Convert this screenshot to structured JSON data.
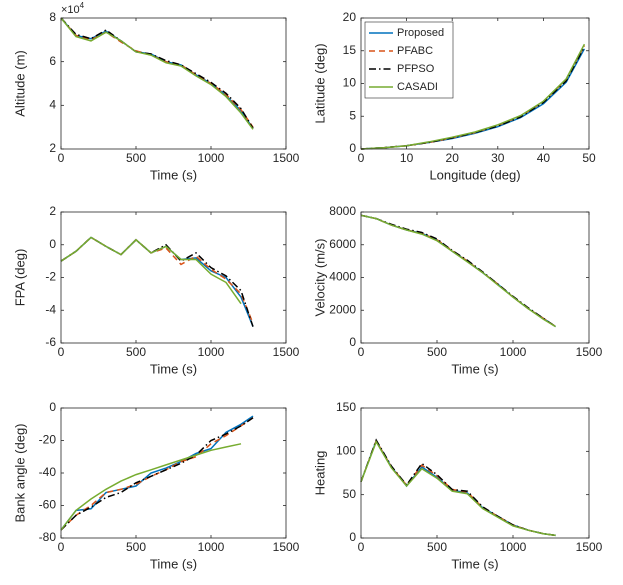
{
  "chart_data": [
    {
      "type": "line",
      "xlabel": "Time (s)",
      "ylabel": "Altitude (m)",
      "y_exponent_base": "×10",
      "y_exponent": "4",
      "x": [
        0,
        100,
        200,
        300,
        400,
        500,
        600,
        700,
        800,
        900,
        1000,
        1100,
        1200,
        1280
      ],
      "xlim": [
        0,
        1500
      ],
      "xticks": [
        0,
        500,
        1000,
        1500
      ],
      "ylim": [
        2,
        8
      ],
      "yticks": [
        2,
        4,
        6,
        8
      ],
      "series": [
        {
          "color": "#0072bd",
          "style": "solid",
          "values": [
            8.0,
            7.2,
            7.05,
            7.4,
            6.95,
            6.45,
            6.35,
            6.0,
            5.85,
            5.4,
            5.0,
            4.45,
            3.75,
            2.95
          ]
        },
        {
          "color": "#d95319",
          "style": "dashed",
          "values": [
            8.0,
            7.2,
            7.0,
            7.35,
            6.9,
            6.5,
            6.3,
            6.0,
            5.85,
            5.4,
            5.0,
            4.5,
            3.8,
            3.0
          ]
        },
        {
          "color": "#000000",
          "style": "dashdot",
          "values": [
            8.0,
            7.25,
            7.05,
            7.45,
            6.95,
            6.45,
            6.35,
            6.05,
            5.85,
            5.45,
            5.05,
            4.55,
            3.85,
            2.95
          ]
        },
        {
          "color": "#77ac30",
          "style": "solid",
          "values": [
            8.0,
            7.15,
            6.95,
            7.35,
            6.95,
            6.45,
            6.3,
            5.95,
            5.8,
            5.35,
            4.95,
            4.4,
            3.65,
            2.9
          ]
        }
      ]
    },
    {
      "type": "line",
      "xlabel": "Longitude (deg)",
      "ylabel": "Latitude (deg)",
      "legend": "upper-left",
      "x": [
        0,
        5,
        10,
        15,
        20,
        25,
        30,
        35,
        40,
        45,
        49
      ],
      "xlim": [
        0,
        50
      ],
      "xticks": [
        0,
        10,
        20,
        30,
        40,
        50
      ],
      "ylim": [
        0,
        20
      ],
      "yticks": [
        0,
        5,
        10,
        15,
        20
      ],
      "series": [
        {
          "name": "Proposed",
          "color": "#0072bd",
          "style": "solid",
          "values": [
            0,
            0.2,
            0.5,
            1.0,
            1.6,
            2.4,
            3.4,
            4.8,
            6.9,
            10.2,
            15.3
          ]
        },
        {
          "name": "PFABC",
          "color": "#d95319",
          "style": "dashed",
          "values": [
            0,
            0.2,
            0.5,
            1.0,
            1.7,
            2.5,
            3.6,
            5.0,
            7.2,
            10.6,
            15.8
          ]
        },
        {
          "name": "PFPSO",
          "color": "#000000",
          "style": "dashdot",
          "values": [
            0,
            0.2,
            0.5,
            1.0,
            1.7,
            2.5,
            3.5,
            4.9,
            7.1,
            10.4,
            15.6
          ]
        },
        {
          "name": "CASADI",
          "color": "#77ac30",
          "style": "solid",
          "values": [
            0,
            0.2,
            0.5,
            1.1,
            1.8,
            2.6,
            3.7,
            5.1,
            7.3,
            10.7,
            16.0
          ]
        }
      ]
    },
    {
      "type": "line",
      "xlabel": "Time (s)",
      "ylabel": "FPA (deg)",
      "x": [
        0,
        100,
        200,
        300,
        400,
        500,
        600,
        700,
        800,
        900,
        1000,
        1100,
        1200,
        1280
      ],
      "xlim": [
        0,
        1500
      ],
      "xticks": [
        0,
        500,
        1000,
        1500
      ],
      "ylim": [
        -6,
        2
      ],
      "yticks": [
        -6,
        -4,
        -2,
        0,
        2
      ],
      "series": [
        {
          "color": "#0072bd",
          "style": "solid",
          "values": [
            -1.0,
            -0.4,
            0.45,
            -0.1,
            -0.6,
            0.3,
            -0.5,
            -0.1,
            -0.9,
            -0.8,
            -1.6,
            -2.0,
            -3.2,
            -5.0
          ]
        },
        {
          "color": "#d95319",
          "style": "dashed",
          "values": [
            -1.0,
            -0.4,
            0.45,
            -0.1,
            -0.6,
            0.3,
            -0.5,
            -0.2,
            -1.2,
            -0.7,
            -1.5,
            -2.1,
            -3.0,
            -4.8
          ]
        },
        {
          "color": "#000000",
          "style": "dashdot",
          "values": [
            -1.0,
            -0.4,
            0.45,
            -0.1,
            -0.6,
            0.3,
            -0.5,
            0.0,
            -1.0,
            -0.5,
            -1.4,
            -1.9,
            -2.8,
            -5.0
          ]
        },
        {
          "color": "#77ac30",
          "style": "solid",
          "values": [
            -1.0,
            -0.4,
            0.45,
            -0.1,
            -0.6,
            0.3,
            -0.5,
            -0.1,
            -0.9,
            -0.9,
            -1.8,
            -2.3,
            -3.6,
            null
          ]
        }
      ]
    },
    {
      "type": "line",
      "xlabel": "Time (s)",
      "ylabel": "Velocity (m/s)",
      "x": [
        0,
        100,
        200,
        300,
        400,
        500,
        600,
        700,
        800,
        900,
        1000,
        1100,
        1200,
        1280
      ],
      "xlim": [
        0,
        1500
      ],
      "xticks": [
        0,
        500,
        1000,
        1500
      ],
      "ylim": [
        0,
        8000
      ],
      "yticks": [
        0,
        2000,
        4000,
        6000,
        8000
      ],
      "series": [
        {
          "color": "#0072bd",
          "style": "solid",
          "values": [
            7800,
            7600,
            7200,
            6900,
            6700,
            6300,
            5600,
            5000,
            4300,
            3600,
            2800,
            2100,
            1500,
            1000
          ]
        },
        {
          "color": "#d95319",
          "style": "dashed",
          "values": [
            7800,
            7600,
            7200,
            6900,
            6700,
            6300,
            5650,
            5000,
            4300,
            3600,
            2800,
            2100,
            1500,
            1000
          ]
        },
        {
          "color": "#000000",
          "style": "dashdot",
          "values": [
            7800,
            7600,
            7250,
            6950,
            6750,
            6350,
            5650,
            5050,
            4350,
            3600,
            2850,
            2150,
            1500,
            1000
          ]
        },
        {
          "color": "#77ac30",
          "style": "solid",
          "values": [
            7800,
            7600,
            7200,
            6900,
            6650,
            6250,
            5600,
            4950,
            4300,
            3550,
            2800,
            2100,
            1450,
            1000
          ]
        }
      ]
    },
    {
      "type": "line",
      "xlabel": "Time (s)",
      "ylabel": "Bank angle (deg)",
      "x": [
        0,
        100,
        200,
        300,
        400,
        500,
        600,
        700,
        800,
        900,
        1000,
        1100,
        1200,
        1280
      ],
      "xlim": [
        0,
        1500
      ],
      "xticks": [
        0,
        500,
        1000,
        1500
      ],
      "ylim": [
        -80,
        0
      ],
      "yticks": [
        -80,
        -60,
        -40,
        -20,
        0
      ],
      "series": [
        {
          "color": "#0072bd",
          "style": "solid",
          "values": [
            -75,
            -63,
            -62,
            -52,
            -50,
            -48,
            -40,
            -37,
            -33,
            -28,
            -25,
            -15,
            -10,
            -5
          ]
        },
        {
          "color": "#d95319",
          "style": "dashed",
          "values": [
            -75,
            -66,
            -60,
            -52,
            -50,
            -47,
            -42,
            -38,
            -33,
            -30,
            -22,
            -17,
            -11,
            -6
          ]
        },
        {
          "color": "#000000",
          "style": "dashdot",
          "values": [
            -75,
            -66,
            -61,
            -55,
            -52,
            -46,
            -42,
            -38,
            -34,
            -29,
            -20,
            -16,
            -11,
            -6
          ]
        },
        {
          "color": "#77ac30",
          "style": "solid",
          "values": [
            -75,
            -63,
            -56,
            -50,
            -45,
            -41,
            -38,
            -35,
            -32,
            -29,
            -26,
            -24,
            -22,
            null
          ]
        }
      ]
    },
    {
      "type": "line",
      "xlabel": "Time (s)",
      "ylabel": "Heating",
      "x": [
        0,
        100,
        200,
        300,
        400,
        500,
        600,
        700,
        800,
        900,
        1000,
        1100,
        1200,
        1280
      ],
      "xlim": [
        0,
        1500
      ],
      "xticks": [
        0,
        500,
        1000,
        1500
      ],
      "ylim": [
        0,
        150
      ],
      "yticks": [
        0,
        50,
        100,
        150
      ],
      "series": [
        {
          "color": "#0072bd",
          "style": "solid",
          "values": [
            65,
            112,
            82,
            60,
            82,
            70,
            55,
            52,
            35,
            25,
            15,
            9,
            5,
            3
          ]
        },
        {
          "color": "#d95319",
          "style": "dashed",
          "values": [
            65,
            112,
            82,
            61,
            84,
            72,
            56,
            53,
            35,
            25,
            15,
            9,
            5,
            3
          ]
        },
        {
          "color": "#000000",
          "style": "dashdot",
          "values": [
            65,
            113,
            83,
            61,
            86,
            73,
            56,
            54,
            36,
            25,
            15,
            9,
            5,
            3
          ]
        },
        {
          "color": "#77ac30",
          "style": "solid",
          "values": [
            65,
            111,
            81,
            60,
            80,
            69,
            54,
            51,
            34,
            24,
            14,
            9,
            5,
            3
          ]
        }
      ]
    }
  ]
}
